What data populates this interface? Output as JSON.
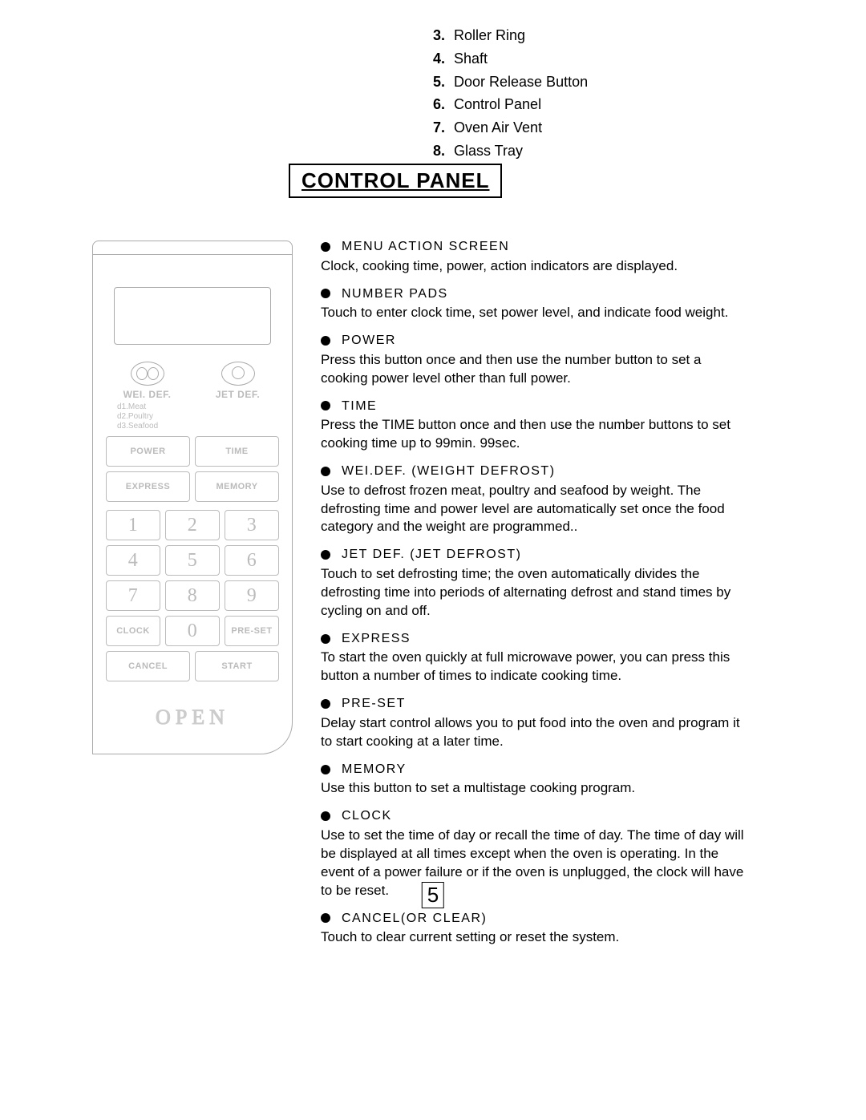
{
  "parts_list": [
    {
      "num": "3.",
      "label": "Roller Ring"
    },
    {
      "num": "4.",
      "label": "Shaft"
    },
    {
      "num": "5.",
      "label": "Door Release Button"
    },
    {
      "num": "6.",
      "label": "Control Panel"
    },
    {
      "num": "7.",
      "label": "Oven Air Vent"
    },
    {
      "num": "8.",
      "label": "Glass Tray"
    }
  ],
  "heading": "CONTROL PANEL",
  "panel": {
    "wei_def_label": "WEI. DEF.",
    "jet_def_label": "JET DEF.",
    "def_sub_1": "d1.Meat",
    "def_sub_2": "d2.Poultry",
    "def_sub_3": "d3.Seafood",
    "power": "POWER",
    "time": "TIME",
    "express": "EXPRESS",
    "memory": "MEMORY",
    "clock": "CLOCK",
    "preset": "PRE-SET",
    "cancel": "CANCEL",
    "start": "START",
    "open": "OPEN",
    "n1": "1",
    "n2": "2",
    "n3": "3",
    "n4": "4",
    "n5": "5",
    "n6": "6",
    "n7": "7",
    "n8": "8",
    "n9": "9",
    "n0": "0"
  },
  "descriptions": [
    {
      "title": "MENU ACTION SCREEN",
      "body": "Clock, cooking time, power, action indicators are displayed."
    },
    {
      "title": "NUMBER PADS",
      "body": "Touch to enter clock time, set power level, and indicate food weight."
    },
    {
      "title": "POWER",
      "body": "Press this button once and then use the number button to set a cooking power level other than full power."
    },
    {
      "title": "TIME",
      "body": "Press the TIME button once and then use the number buttons to set cooking time up to 99min. 99sec."
    },
    {
      "title": "WEI.DEF. (WEIGHT DEFROST)",
      "body": "Use to defrost frozen meat, poultry and seafood by weight. The defrosting time and power level are automatically set once the food category and the weight are programmed.."
    },
    {
      "title": "JET DEF. (JET DEFROST)",
      "body": "Touch to set defrosting time; the oven automatically divides the defrosting time into periods of alternating defrost and stand times by cycling on and off."
    },
    {
      "title": "EXPRESS",
      "body": "To start the oven quickly at full microwave power, you can press this button a number of times to indicate cooking time."
    },
    {
      "title": "PRE-SET",
      "body": "Delay start control allows you to put food into the oven and program it to start cooking at a later time."
    },
    {
      "title": "MEMORY",
      "body": "Use this button to set a multistage cooking program."
    },
    {
      "title": "CLOCK",
      "body": "Use to set the time of day or recall the time of day. The time of day will be displayed at all times except when the oven is operating. In the event of a power failure or if the oven is unplugged, the clock will have to be reset."
    },
    {
      "title": "CANCEL(OR CLEAR)",
      "body": "Touch to clear current setting or reset the system."
    }
  ],
  "page_number": "5",
  "colors": {
    "text": "#000000",
    "faded": "#bbbbbb",
    "bg": "#ffffff"
  }
}
